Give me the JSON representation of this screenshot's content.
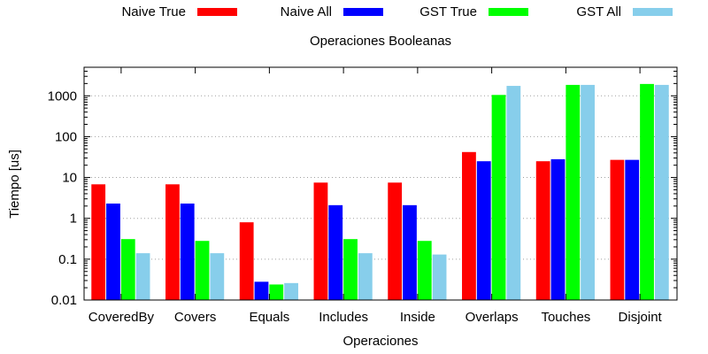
{
  "chart_data": {
    "type": "bar",
    "title": "Operaciones Booleanas",
    "xlabel": "Operaciones",
    "ylabel": "Tiempo [us]",
    "yscale": "log",
    "ylim": [
      0.01,
      5000
    ],
    "yticks": [
      {
        "value": 0.01,
        "label": "0.01"
      },
      {
        "value": 0.1,
        "label": "0.1"
      },
      {
        "value": 1,
        "label": "1"
      },
      {
        "value": 10,
        "label": "10"
      },
      {
        "value": 100,
        "label": "100"
      },
      {
        "value": 1000,
        "label": "1000"
      }
    ],
    "grid": "horizontal dotted",
    "legend": "top",
    "categories": [
      "CoveredBy",
      "Covers",
      "Equals",
      "Includes",
      "Inside",
      "Overlaps",
      "Touches",
      "Disjoint"
    ],
    "series": [
      {
        "name": "Naive True",
        "color": "#ff0000",
        "values": [
          6.8,
          6.8,
          0.8,
          7.5,
          7.5,
          42,
          25,
          27
        ]
      },
      {
        "name": "Naive All",
        "color": "#0000ff",
        "values": [
          2.3,
          2.3,
          0.028,
          2.1,
          2.1,
          25,
          28,
          27
        ]
      },
      {
        "name": "GST True",
        "color": "#00ff00",
        "values": [
          0.31,
          0.28,
          0.024,
          0.31,
          0.28,
          1050,
          1850,
          1950
        ]
      },
      {
        "name": "GST All",
        "color": "#87ceeb",
        "values": [
          0.14,
          0.14,
          0.026,
          0.14,
          0.13,
          1750,
          1850,
          1850
        ]
      }
    ]
  }
}
